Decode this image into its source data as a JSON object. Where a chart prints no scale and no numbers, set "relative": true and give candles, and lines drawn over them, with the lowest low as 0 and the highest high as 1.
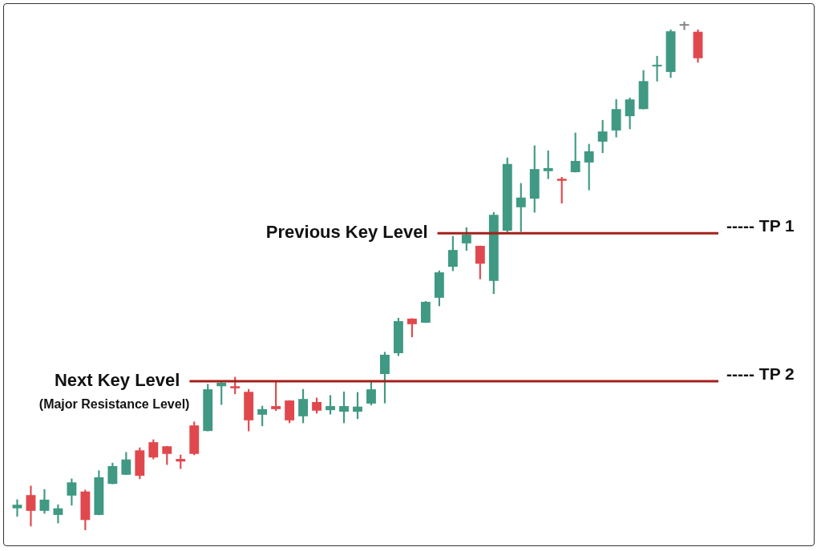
{
  "chart_data": {
    "type": "candlestick",
    "relative": true,
    "categories": [
      null,
      null,
      null,
      null,
      null,
      null,
      null,
      null,
      null,
      null,
      null,
      null,
      null,
      null,
      null,
      null,
      null,
      null,
      null,
      null,
      null,
      null,
      null,
      null,
      null,
      null,
      null,
      null,
      null,
      null,
      null,
      null,
      null,
      null,
      null,
      null,
      null,
      null,
      null,
      null,
      null,
      null,
      null,
      null,
      null,
      null,
      null,
      null,
      null,
      null,
      null
    ],
    "ohlc": [
      [
        0.043,
        0.06,
        0.027,
        0.05
      ],
      [
        0.069,
        0.087,
        0.008,
        0.038
      ],
      [
        0.038,
        0.08,
        0.033,
        0.06
      ],
      [
        0.03,
        0.05,
        0.014,
        0.043
      ],
      [
        0.068,
        0.101,
        0.049,
        0.094
      ],
      [
        0.076,
        0.079,
        0,
        0.02
      ],
      [
        0.03,
        0.117,
        0.03,
        0.104
      ],
      [
        0.091,
        0.132,
        0.091,
        0.126
      ],
      [
        0.109,
        0.153,
        0.109,
        0.139
      ],
      [
        0.157,
        0.162,
        0.101,
        0.107
      ],
      [
        0.173,
        0.178,
        0.14,
        0.143
      ],
      [
        0.165,
        0.165,
        0.129,
        0.15
      ],
      [
        0.14,
        0.148,
        0.121,
        0.135
      ],
      [
        0.206,
        0.213,
        0.148,
        0.15
      ],
      [
        0.195,
        0.287,
        0.195,
        0.277
      ],
      [
        0.283,
        0.294,
        0.247,
        0.29
      ],
      [
        0.283,
        0.301,
        0.268,
        0.279
      ],
      [
        0.272,
        0.277,
        0.195,
        0.216
      ],
      [
        0.227,
        0.244,
        0.205,
        0.238
      ],
      [
        0.244,
        0.293,
        0.235,
        0.238
      ],
      [
        0.255,
        0.255,
        0.211,
        0.216
      ],
      [
        0.224,
        0.277,
        0.211,
        0.258
      ],
      [
        0.252,
        0.26,
        0.23,
        0.235
      ],
      [
        0.236,
        0.265,
        0.228,
        0.244
      ],
      [
        0.233,
        0.272,
        0.211,
        0.244
      ],
      [
        0.233,
        0.271,
        0.219,
        0.243
      ],
      [
        0.249,
        0.293,
        0.246,
        0.277
      ],
      [
        0.307,
        0.35,
        0.25,
        0.345
      ],
      [
        0.348,
        0.417,
        0.343,
        0.411
      ],
      [
        0.416,
        0.416,
        0.38,
        0.405
      ],
      [
        0.408,
        0.45,
        0.408,
        0.449
      ],
      [
        0.457,
        0.51,
        0.441,
        0.507
      ],
      [
        0.518,
        0.578,
        0.51,
        0.551
      ],
      [
        0.564,
        0.595,
        0.55,
        0.581
      ],
      [
        0.559,
        0.559,
        0.494,
        0.524
      ],
      [
        0.49,
        0.625,
        0.465,
        0.62
      ],
      [
        0.589,
        0.732,
        0.586,
        0.72
      ],
      [
        0.635,
        0.682,
        0.587,
        0.654
      ],
      [
        0.652,
        0.756,
        0.625,
        0.71
      ],
      [
        0.706,
        0.746,
        0.691,
        0.712
      ],
      [
        0.691,
        0.694,
        0.643,
        0.687
      ],
      [
        0.704,
        0.781,
        0.704,
        0.726
      ],
      [
        0.723,
        0.759,
        0.669,
        0.745
      ],
      [
        0.764,
        0.806,
        0.742,
        0.784
      ],
      [
        0.786,
        0.847,
        0.773,
        0.828
      ],
      [
        0.814,
        0.85,
        0.789,
        0.847
      ],
      [
        0.828,
        0.904,
        0.828,
        0.883
      ],
      [
        0.912,
        0.932,
        0.883,
        0.913
      ],
      [
        0.901,
        0.984,
        0.89,
        0.981
      ],
      [
        0.992,
        1,
        0.984,
        0.992
      ],
      [
        0.98,
        0.984,
        0.92,
        0.928
      ]
    ],
    "colors": [
      "#3f9983",
      "#e0484e",
      "#3f9983",
      "#3f9983",
      "#3f9983",
      "#e0484e",
      "#3f9983",
      "#3f9983",
      "#3f9983",
      "#e0484e",
      "#e0484e",
      "#e0484e",
      "#e0484e",
      "#e0484e",
      "#3f9983",
      "#3f9983",
      "#e0484e",
      "#e0484e",
      "#3f9983",
      "#e0484e",
      "#e0484e",
      "#3f9983",
      "#e0484e",
      "#3f9983",
      "#3f9983",
      "#3f9983",
      "#3f9983",
      "#3f9983",
      "#3f9983",
      "#e0484e",
      "#3f9983",
      "#3f9983",
      "#3f9983",
      "#3f9983",
      "#e0484e",
      "#3f9983",
      "#3f9983",
      "#3f9983",
      "#3f9983",
      "#3f9983",
      "#e0484e",
      "#3f9983",
      "#3f9983",
      "#3f9983",
      "#3f9983",
      "#3f9983",
      "#3f9983",
      "#3f9983",
      "#3f9983",
      "#888888",
      "#e0484e"
    ],
    "ref_lines": [
      {
        "axis": "y",
        "value": 0.584,
        "label": "----- TP 1",
        "color": "#a3201a"
      },
      {
        "axis": "y",
        "value": 0.293,
        "label": "----- TP 2",
        "color": "#a3201a"
      }
    ],
    "annotations": [
      "Previous Key Level",
      "Next Key Level\n(Major Resistance Level)"
    ]
  }
}
